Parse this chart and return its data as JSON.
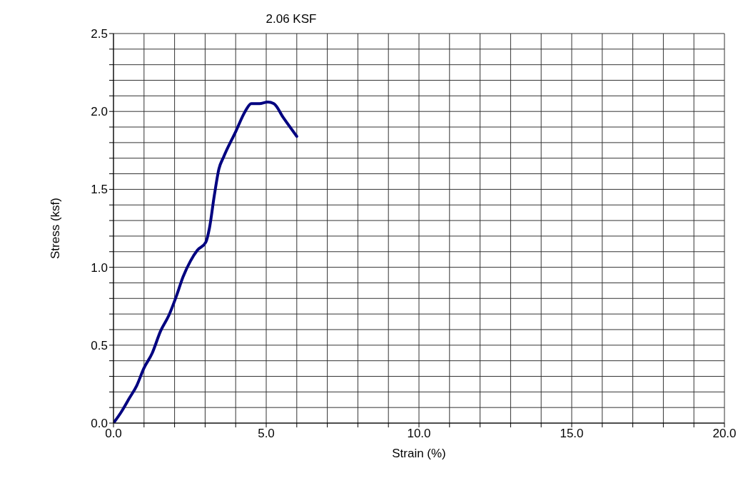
{
  "chart_data": {
    "type": "line",
    "title": "2.06 KSF",
    "xlabel": "Strain (%)",
    "ylabel": "Stress (ksf)",
    "series": [
      {
        "color": "#000080",
        "x": [
          0,
          0.25,
          0.52,
          0.76,
          0.99,
          1.27,
          1.54,
          1.81,
          2.05,
          2.28,
          2.52,
          2.75,
          3.02,
          3.14,
          3.3,
          3.45,
          3.61,
          4.0,
          4.31,
          4.51,
          4.78,
          5.05,
          5.25,
          5.56,
          6.0
        ],
        "values": [
          0,
          0.07,
          0.16,
          0.24,
          0.35,
          0.45,
          0.59,
          0.69,
          0.81,
          0.94,
          1.04,
          1.11,
          1.16,
          1.25,
          1.46,
          1.63,
          1.71,
          1.87,
          2.0,
          2.05,
          2.05,
          2.06,
          2.05,
          1.96,
          1.84
        ]
      }
    ],
    "xlim": [
      0,
      20
    ],
    "ylim": [
      0,
      2.5
    ],
    "xticks": [
      {
        "value": 0,
        "label": "0.0"
      },
      {
        "value": 1,
        "label": null
      },
      {
        "value": 2,
        "label": null
      },
      {
        "value": 3,
        "label": null
      },
      {
        "value": 4,
        "label": null
      },
      {
        "value": 5,
        "label": "5.0"
      },
      {
        "value": 6,
        "label": null
      },
      {
        "value": 7,
        "label": null
      },
      {
        "value": 8,
        "label": null
      },
      {
        "value": 9,
        "label": null
      },
      {
        "value": 10,
        "label": "10.0"
      },
      {
        "value": 11,
        "label": null
      },
      {
        "value": 12,
        "label": null
      },
      {
        "value": 13,
        "label": null
      },
      {
        "value": 14,
        "label": null
      },
      {
        "value": 15,
        "label": "15.0"
      },
      {
        "value": 16,
        "label": null
      },
      {
        "value": 17,
        "label": null
      },
      {
        "value": 18,
        "label": null
      },
      {
        "value": 19,
        "label": null
      },
      {
        "value": 20,
        "label": "20.0"
      }
    ],
    "yticks": [
      {
        "value": 0,
        "label": "0.0"
      },
      {
        "value": 0.1,
        "label": null
      },
      {
        "value": 0.2,
        "label": null
      },
      {
        "value": 0.3,
        "label": null
      },
      {
        "value": 0.4,
        "label": null
      },
      {
        "value": 0.5,
        "label": "0.5"
      },
      {
        "value": 0.6,
        "label": null
      },
      {
        "value": 0.7,
        "label": null
      },
      {
        "value": 0.8,
        "label": null
      },
      {
        "value": 0.9,
        "label": null
      },
      {
        "value": 1.0,
        "label": "1.0"
      },
      {
        "value": 1.1,
        "label": null
      },
      {
        "value": 1.2,
        "label": null
      },
      {
        "value": 1.3,
        "label": null
      },
      {
        "value": 1.4,
        "label": null
      },
      {
        "value": 1.5,
        "label": "1.5"
      },
      {
        "value": 1.6,
        "label": null
      },
      {
        "value": 1.7,
        "label": null
      },
      {
        "value": 1.8,
        "label": null
      },
      {
        "value": 1.9,
        "label": null
      },
      {
        "value": 2.0,
        "label": "2.0"
      },
      {
        "value": 2.1,
        "label": null
      },
      {
        "value": 2.2,
        "label": null
      },
      {
        "value": 2.3,
        "label": null
      },
      {
        "value": 2.4,
        "label": null
      },
      {
        "value": 2.5,
        "label": "2.5"
      }
    ],
    "grid": true,
    "marker": "none",
    "line_style": "solid"
  }
}
